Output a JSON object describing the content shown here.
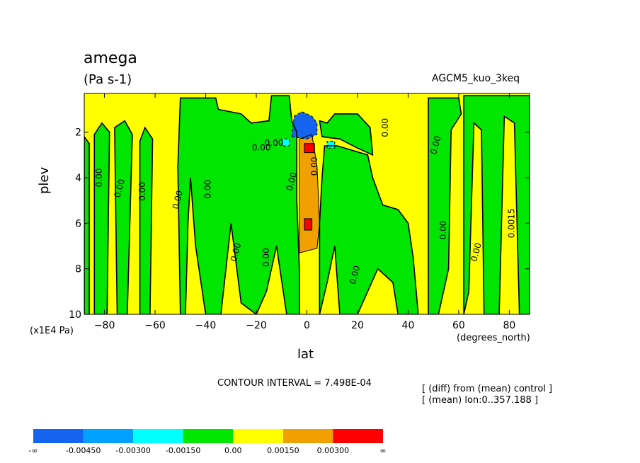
{
  "title": "amega",
  "units": "(Pa s-1)",
  "run_name": "AGCM5_kuo_3keq",
  "contour_interval": "CONTOUR INTERVAL = 7.498E-04",
  "notes": [
    "[ (diff) from (mean) control ]",
    "[ (mean) lon:0..357.188 ]"
  ],
  "chart_data": {
    "type": "heatmap",
    "title": "amega",
    "xlabel": "lat",
    "xunits": "(degrees_north)",
    "ylabel": "plev",
    "yunits": "(x1E4 Pa)",
    "xlim": [
      -88,
      88
    ],
    "ylim": [
      10,
      0.3
    ],
    "x_ticks": [
      -80,
      -60,
      -40,
      -20,
      0,
      20,
      40,
      60,
      80
    ],
    "x_tick_labels": [
      "−80",
      "−60",
      "−40",
      "−20",
      "0",
      "20",
      "40",
      "60",
      "80"
    ],
    "y_ticks": [
      2,
      4,
      6,
      8,
      10
    ],
    "y_tick_labels": [
      "2",
      "4",
      "6",
      "8",
      "10"
    ],
    "contour_labels": [
      "0.00",
      "0.00",
      "0.00",
      "0.00",
      "0.00",
      "0.00",
      "0.00",
      "0.00",
      "0.00",
      "0.00",
      "0.00",
      "0.00",
      "0.00",
      "0.00",
      "0.00",
      "0.00",
      "0.0015"
    ],
    "colorbar": {
      "colors": [
        "#1464f0",
        "#00a0ff",
        "#00ffff",
        "#00e600",
        "#ffff00",
        "#f0a000",
        "#ff0000"
      ],
      "labels": [
        "-∞",
        "-0.00450",
        "-0.00300",
        "-0.00150",
        "0.00",
        "0.00150",
        "0.00300",
        "∞"
      ]
    },
    "regions": [
      {
        "level": "positive-low",
        "color": "#ffff00",
        "poly": [
          [
            -88,
            10
          ],
          [
            -88,
            0.3
          ],
          [
            88,
            0.3
          ],
          [
            88,
            10
          ]
        ]
      },
      {
        "level": "negative-low",
        "color": "#00e600",
        "poly": [
          [
            -88,
            2.2
          ],
          [
            -86,
            2.5
          ],
          [
            -86,
            10
          ],
          [
            -88,
            10
          ]
        ]
      },
      {
        "level": "negative-low",
        "color": "#00e600",
        "poly": [
          [
            -84,
            10
          ],
          [
            -84,
            2.1
          ],
          [
            -81,
            1.6
          ],
          [
            -78,
            2.0
          ],
          [
            -79,
            10
          ]
        ]
      },
      {
        "level": "negative-low",
        "color": "#00e600",
        "poly": [
          [
            -75,
            10
          ],
          [
            -76,
            1.8
          ],
          [
            -72,
            1.5
          ],
          [
            -69,
            2.1
          ],
          [
            -71,
            10
          ]
        ]
      },
      {
        "level": "negative-low",
        "color": "#00e600",
        "poly": [
          [
            -66,
            10
          ],
          [
            -66,
            2.4
          ],
          [
            -64,
            1.8
          ],
          [
            -61,
            2.3
          ],
          [
            -62,
            10
          ]
        ]
      },
      {
        "level": "negative-low",
        "color": "#00e600",
        "poly": [
          [
            -50,
            10
          ],
          [
            -51,
            3.5
          ],
          [
            -50,
            0.5
          ],
          [
            -36,
            0.5
          ],
          [
            -35,
            1.0
          ],
          [
            -26,
            1.2
          ],
          [
            -22,
            1.6
          ],
          [
            -15,
            1.5
          ],
          [
            -14,
            0.4
          ],
          [
            -7,
            0.4
          ],
          [
            -6,
            1.5
          ],
          [
            -4,
            2.0
          ],
          [
            -4,
            5.0
          ],
          [
            -3,
            8.0
          ],
          [
            -3,
            10
          ],
          [
            -8,
            10
          ],
          [
            -12,
            7.0
          ],
          [
            -16,
            9.0
          ],
          [
            -20,
            10
          ],
          [
            -26,
            9.5
          ],
          [
            -30,
            6.0
          ],
          [
            -34,
            10
          ],
          [
            -40,
            10
          ],
          [
            -44,
            7.0
          ],
          [
            -46,
            4.0
          ],
          [
            -47,
            6.0
          ],
          [
            -48,
            10
          ]
        ]
      },
      {
        "level": "negative-low",
        "color": "#00e600",
        "poly": [
          [
            5,
            10
          ],
          [
            5,
            6.0
          ],
          [
            6,
            4.0
          ],
          [
            7,
            2.6
          ],
          [
            12,
            2.6
          ],
          [
            18,
            2.8
          ],
          [
            24,
            3.0
          ],
          [
            26,
            4.0
          ],
          [
            30,
            5.2
          ],
          [
            36,
            5.4
          ],
          [
            40,
            6.0
          ],
          [
            42,
            7.5
          ],
          [
            44,
            10
          ],
          [
            36,
            10
          ],
          [
            34,
            8.6
          ],
          [
            28,
            8.0
          ],
          [
            24,
            9.0
          ],
          [
            20,
            10
          ],
          [
            13,
            10
          ],
          [
            11,
            7.0
          ],
          [
            8,
            8.6
          ]
        ]
      },
      {
        "level": "negative-low",
        "color": "#00e600",
        "poly": [
          [
            5,
            1.5
          ],
          [
            8,
            1.6
          ],
          [
            11,
            1.2
          ],
          [
            20,
            1.2
          ],
          [
            25,
            1.8
          ],
          [
            26,
            3.0
          ],
          [
            20,
            2.7
          ],
          [
            13,
            2.3
          ],
          [
            6,
            2.2
          ]
        ]
      },
      {
        "level": "negative-low",
        "color": "#00e600",
        "poly": [
          [
            48,
            10
          ],
          [
            48,
            0.5
          ],
          [
            60,
            0.5
          ],
          [
            61,
            1.2
          ],
          [
            57,
            1.9
          ],
          [
            56,
            8.0
          ],
          [
            52,
            10
          ]
        ]
      },
      {
        "level": "negative-low",
        "color": "#00e600",
        "poly": [
          [
            62,
            0.4
          ],
          [
            88,
            0.4
          ],
          [
            88,
            10
          ],
          [
            84,
            10
          ],
          [
            82,
            1.6
          ],
          [
            78,
            1.3
          ],
          [
            76,
            10
          ],
          [
            70,
            10
          ],
          [
            69,
            1.9
          ],
          [
            66,
            1.6
          ],
          [
            64,
            9.0
          ],
          [
            62,
            10
          ]
        ]
      },
      {
        "level": "positive-mid",
        "color": "#f0a000",
        "poly": [
          [
            -3,
            7.3
          ],
          [
            -3,
            2.3
          ],
          [
            2,
            2.1
          ],
          [
            4,
            3.5
          ],
          [
            5,
            6.0
          ],
          [
            4,
            7.1
          ]
        ]
      },
      {
        "level": "positive-high",
        "color": "#ff0000",
        "poly": [
          [
            -1,
            2.9
          ],
          [
            -1,
            2.5
          ],
          [
            3,
            2.5
          ],
          [
            3,
            2.9
          ]
        ]
      },
      {
        "level": "positive-high",
        "color": "#ff0000",
        "poly": [
          [
            -1,
            6.3
          ],
          [
            -1,
            5.8
          ],
          [
            2,
            5.8
          ],
          [
            2,
            6.3
          ]
        ]
      },
      {
        "level": "negative-mid",
        "color": "#00ffff",
        "poly": [
          [
            -10,
            2.6
          ],
          [
            -10,
            2.3
          ],
          [
            -7,
            2.3
          ],
          [
            -7,
            2.6
          ]
        ]
      },
      {
        "level": "negative-mid",
        "color": "#00ffff",
        "poly": [
          [
            8,
            2.7
          ],
          [
            8,
            2.4
          ],
          [
            11,
            2.4
          ],
          [
            11,
            2.7
          ]
        ]
      },
      {
        "level": "negative-high",
        "color": "#1464f0",
        "poly": [
          [
            -6,
            2.2
          ],
          [
            -5,
            1.3
          ],
          [
            -2,
            1.1
          ],
          [
            2,
            1.3
          ],
          [
            4,
            1.6
          ],
          [
            4,
            2.1
          ],
          [
            0,
            2.3
          ]
        ]
      }
    ]
  }
}
